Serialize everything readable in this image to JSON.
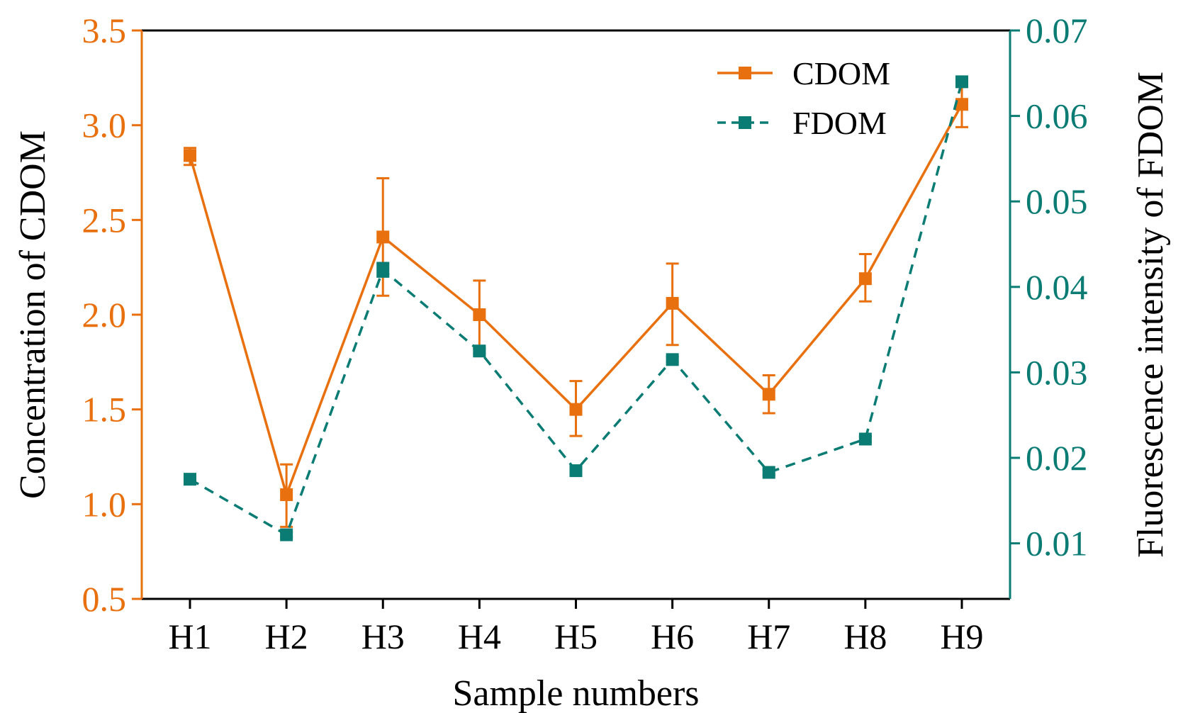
{
  "chart_data": {
    "type": "line",
    "xlabel": "Sample numbers",
    "ylabel_left": "Concentration of CDOM",
    "ylabel_right": "Fluorescence intensity of FDOM",
    "categories": [
      "H1",
      "H2",
      "H3",
      "H4",
      "H5",
      "H6",
      "H7",
      "H8",
      "H9"
    ],
    "ylim_left": [
      0.5,
      3.5
    ],
    "yticks_left": [
      "0.5",
      "1.0",
      "1.5",
      "2.0",
      "2.5",
      "3.0",
      "3.5"
    ],
    "ylim_right": [
      0.0035,
      0.07
    ],
    "yticks_right": [
      "0.01",
      "0.02",
      "0.03",
      "0.04",
      "0.05",
      "0.06",
      "0.07"
    ],
    "legend_position": "top-right",
    "grid": false,
    "series": [
      {
        "name": "CDOM",
        "axis": "left",
        "color": "#E8700F",
        "line_style": "solid",
        "marker": "square",
        "values": [
          2.84,
          1.05,
          2.41,
          2.0,
          1.5,
          2.06,
          1.58,
          2.19,
          3.11
        ],
        "error_low": [
          2.79,
          0.88,
          2.1,
          1.82,
          1.36,
          1.84,
          1.48,
          2.07,
          2.99
        ],
        "error_high": [
          2.88,
          1.21,
          2.72,
          2.18,
          1.65,
          2.27,
          1.68,
          2.32,
          3.22
        ]
      },
      {
        "name": "FDOM",
        "axis": "right",
        "color": "#0A7C74",
        "line_style": "dashed",
        "marker": "square",
        "values": [
          0.0175,
          0.011,
          0.042,
          0.0325,
          0.0185,
          0.0315,
          0.0183,
          0.0222,
          0.064
        ],
        "error_low": [
          0.0173,
          0.0107,
          0.0412,
          0.0322,
          0.0183,
          0.0312,
          0.018,
          0.0219,
          0.0635
        ],
        "error_high": [
          0.0177,
          0.0113,
          0.0428,
          0.0328,
          0.0187,
          0.0318,
          0.0186,
          0.0225,
          0.0645
        ]
      }
    ]
  }
}
